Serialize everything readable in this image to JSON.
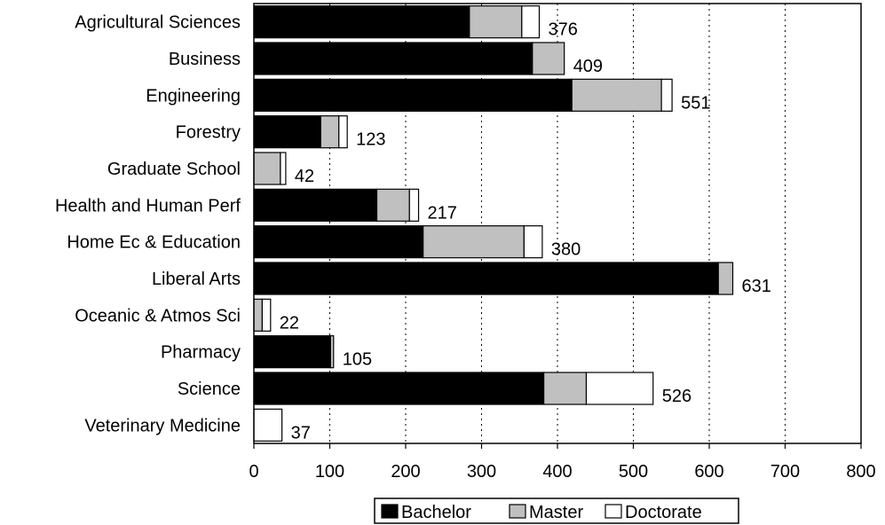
{
  "chart_data": {
    "type": "bar",
    "orientation": "horizontal",
    "stacked": true,
    "categories": [
      "Agricultural Sciences",
      "Business",
      "Engineering",
      "Forestry",
      "Graduate School",
      "Health and Human Perf",
      "Home Ec & Education",
      "Liberal Arts",
      "Oceanic & Atmos Sci",
      "Pharmacy",
      "Science",
      "Veterinary Medicine"
    ],
    "series": [
      {
        "name": "Bachelor",
        "color": "#000000",
        "values": [
          284,
          367,
          419,
          88,
          0,
          162,
          223,
          612,
          0,
          101,
          382,
          0
        ]
      },
      {
        "name": "Master",
        "color": "#c0c0c0",
        "values": [
          69,
          42,
          118,
          24,
          35,
          43,
          133,
          19,
          11,
          4,
          56,
          0
        ]
      },
      {
        "name": "Doctorate",
        "color": "#ffffff",
        "values": [
          23,
          0,
          14,
          11,
          7,
          12,
          24,
          0,
          11,
          0,
          88,
          37
        ]
      }
    ],
    "totals": [
      "376",
      "409",
      "551",
      "123",
      "42",
      "217",
      "380",
      "631",
      "22",
      "105",
      "526",
      "37"
    ],
    "x_ticks": [
      "0",
      "100",
      "200",
      "300",
      "400",
      "500",
      "600",
      "700",
      "800"
    ],
    "xlim": [
      0,
      800
    ],
    "grid": "vertical dotted",
    "legend_position": "bottom"
  }
}
